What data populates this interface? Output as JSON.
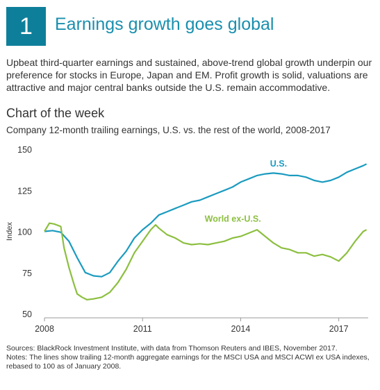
{
  "header": {
    "number": "1",
    "title": "Earnings growth goes global"
  },
  "intro": "Upbeat third-quarter earnings and sustained, above-trend global growth underpin our preference for stocks in Europe, Japan and EM. Profit growth is solid, valuations are attractive and major central banks outside the U.S. remain accommodative.",
  "section_title": "Chart of the week",
  "colors": {
    "accent": "#1a8fae",
    "us": "#1a9bbf",
    "world": "#8cbf3f",
    "badge": "#0e7f9a"
  },
  "chart_data": {
    "type": "line",
    "title": "Company 12-month trailing earnings, U.S. vs. the rest of the world, 2008-2017",
    "xlabel": "",
    "ylabel": "Index",
    "xlim": [
      2008,
      2017.9
    ],
    "ylim": [
      50,
      150
    ],
    "yticks": [
      50,
      75,
      100,
      125,
      150
    ],
    "xticks": [
      2008,
      2011,
      2014,
      2017
    ],
    "grid": false,
    "legend": "inline labels",
    "series": [
      {
        "name": "U.S.",
        "x": [
          2008.0,
          2008.25,
          2008.5,
          2008.75,
          2009.0,
          2009.25,
          2009.5,
          2009.75,
          2010.0,
          2010.25,
          2010.5,
          2010.75,
          2011.0,
          2011.25,
          2011.5,
          2011.75,
          2012.0,
          2012.25,
          2012.5,
          2012.75,
          2013.0,
          2013.25,
          2013.5,
          2013.75,
          2014.0,
          2014.25,
          2014.5,
          2014.75,
          2015.0,
          2015.25,
          2015.5,
          2015.75,
          2016.0,
          2016.25,
          2016.5,
          2016.75,
          2017.0,
          2017.25,
          2017.5,
          2017.75,
          2017.85
        ],
        "values": [
          100,
          100.5,
          99.5,
          94,
          84,
          75,
          73,
          72.5,
          75,
          82,
          88,
          96,
          101,
          105,
          110,
          112,
          114,
          116,
          118,
          119,
          121,
          123,
          125,
          127,
          130,
          132,
          134,
          135,
          135.5,
          135,
          134,
          134,
          133,
          131,
          130,
          131,
          133,
          136,
          138,
          140,
          141
        ]
      },
      {
        "name": "World ex-U.S.",
        "x": [
          2008.0,
          2008.15,
          2008.3,
          2008.5,
          2008.6,
          2008.75,
          2008.9,
          2009.0,
          2009.15,
          2009.3,
          2009.5,
          2009.75,
          2010.0,
          2010.25,
          2010.5,
          2010.75,
          2011.0,
          2011.25,
          2011.4,
          2011.5,
          2011.75,
          2012.0,
          2012.25,
          2012.5,
          2012.75,
          2013.0,
          2013.25,
          2013.5,
          2013.75,
          2014.0,
          2014.25,
          2014.5,
          2014.75,
          2015.0,
          2015.25,
          2015.5,
          2015.75,
          2016.0,
          2016.25,
          2016.5,
          2016.75,
          2017.0,
          2017.25,
          2017.5,
          2017.75,
          2017.85
        ],
        "values": [
          100,
          105,
          104.5,
          103,
          90,
          78,
          68,
          62,
          60,
          58.5,
          59,
          60,
          63,
          69,
          77,
          87,
          94,
          101,
          104,
          102,
          98,
          96,
          93,
          92,
          92.5,
          92,
          93,
          94,
          96,
          97,
          99,
          101,
          97,
          93,
          90,
          89,
          87,
          87,
          85,
          86,
          84.5,
          82,
          87,
          94,
          100,
          101
        ]
      }
    ]
  },
  "footer": {
    "sources": "Sources: BlackRock Investment Institute, with data from Thomson Reuters and IBES, November 2017.",
    "notes": "Notes: The lines show trailing 12-month aggregate earnings for the MSCI USA and MSCI ACWI ex USA indexes, rebased to 100 as of January 2008."
  }
}
